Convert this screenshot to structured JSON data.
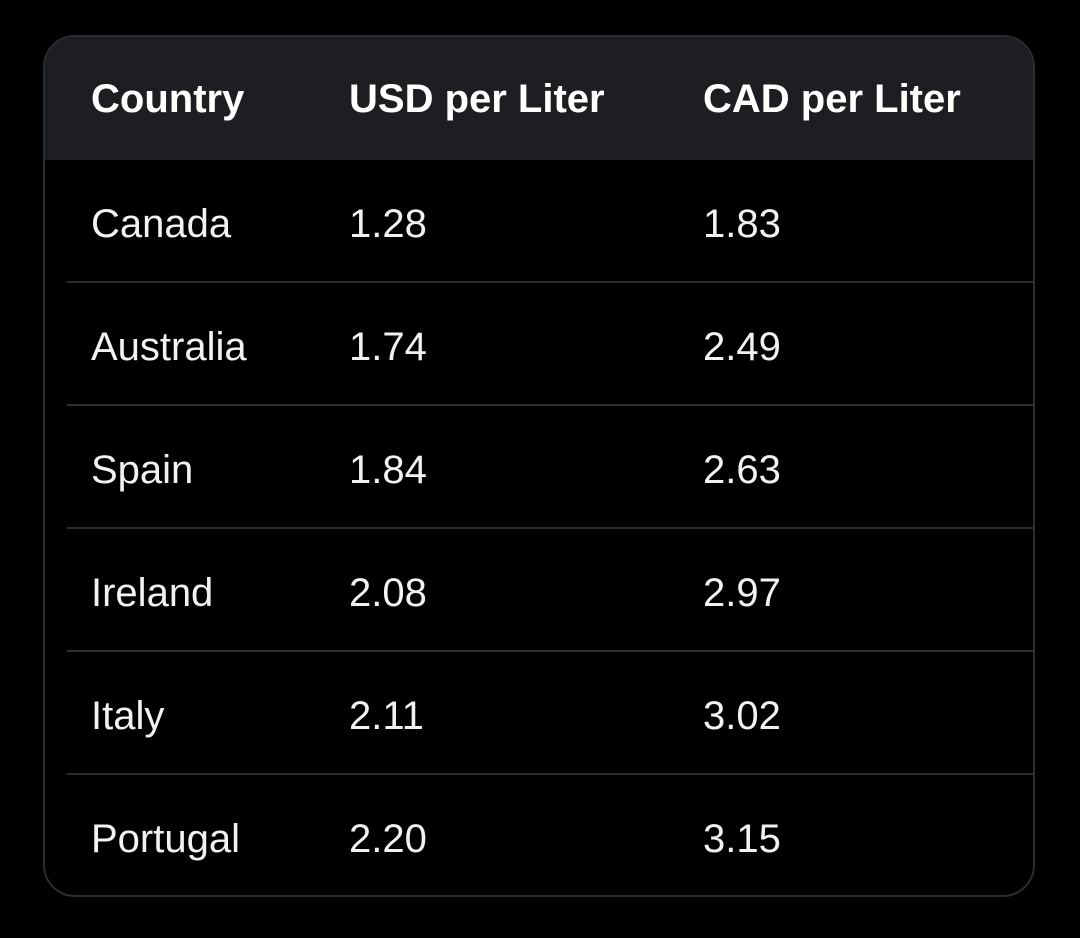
{
  "table": {
    "headers": {
      "country": "Country",
      "usd": "USD per Liter",
      "cad": "CAD per Liter"
    },
    "rows": [
      {
        "country": "Canada",
        "usd": "1.28",
        "cad": "1.83"
      },
      {
        "country": "Australia",
        "usd": "1.74",
        "cad": "2.49"
      },
      {
        "country": "Spain",
        "usd": "1.84",
        "cad": "2.63"
      },
      {
        "country": "Ireland",
        "usd": "2.08",
        "cad": "2.97"
      },
      {
        "country": "Italy",
        "usd": "2.11",
        "cad": "3.02"
      },
      {
        "country": "Portugal",
        "usd": "2.20",
        "cad": "3.15"
      }
    ]
  },
  "colors": {
    "background": "#000000",
    "header_background": "#1c1e22",
    "border": "#2a2d31",
    "text": "#ffffff"
  }
}
